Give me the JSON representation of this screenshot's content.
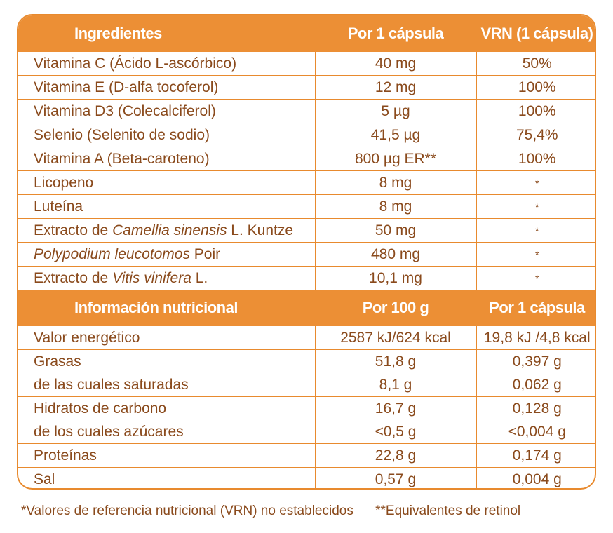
{
  "ingredients_header": {
    "col1": "Ingredientes",
    "col2": "Por 1 cápsula",
    "col3": "VRN (1 cápsula)"
  },
  "ingredients": [
    {
      "pre": "Vitamina C (Ácido L-ascórbico)",
      "italic": "",
      "post": "",
      "amount": "40 mg",
      "vrn": "50%"
    },
    {
      "pre": "Vitamina E (D-alfa tocoferol)",
      "italic": "",
      "post": "",
      "amount": "12 mg",
      "vrn": "100%"
    },
    {
      "pre": "Vitamina D3 (Colecalciferol)",
      "italic": "",
      "post": "",
      "amount": "5 µg",
      "vrn": "100%"
    },
    {
      "pre": "Selenio (Selenito de sodio)",
      "italic": "",
      "post": "",
      "amount": "41,5 µg",
      "vrn": "75,4%"
    },
    {
      "pre": "Vitamina A (Beta-caroteno)",
      "italic": "",
      "post": "",
      "amount": "800 µg ER**",
      "vrn": "100%"
    },
    {
      "pre": "Licopeno",
      "italic": "",
      "post": "",
      "amount": "8 mg",
      "vrn": "*"
    },
    {
      "pre": "Luteína",
      "italic": "",
      "post": "",
      "amount": "8 mg",
      "vrn": "*"
    },
    {
      "pre": "Extracto de ",
      "italic": "Camellia sinensis",
      "post": " L. Kuntze",
      "amount": "50 mg",
      "vrn": "*"
    },
    {
      "pre": "",
      "italic": "Polypodium leucotomos",
      "post": " Poir",
      "amount": "480 mg",
      "vrn": "*"
    },
    {
      "pre": "Extracto de ",
      "italic": "Vitis vinifera",
      "post": " L.",
      "amount": "10,1 mg",
      "vrn": "*"
    }
  ],
  "nutrition_header": {
    "col1": "Información nutricional",
    "col2": "Por 100 g",
    "col3": "Por 1 cápsula"
  },
  "nutrition": [
    {
      "name": "Valor energético",
      "per100": "2587 kJ/624 kcal",
      "percap": "19,8 kJ /4,8 kcal"
    },
    {
      "name": "Grasas",
      "per100": "51,8 g",
      "percap": "0,397 g"
    },
    {
      "name": "de las cuales saturadas",
      "per100": "8,1 g",
      "percap": "0,062 g"
    },
    {
      "name": "Hidratos de carbono",
      "per100": "16,7 g",
      "percap": "0,128 g"
    },
    {
      "name": "de los cuales azúcares",
      "per100": "<0,5 g",
      "percap": "<0,004 g"
    },
    {
      "name": "Proteínas",
      "per100": "22,8 g",
      "percap": "0,174 g"
    },
    {
      "name": "Sal",
      "per100": "0,57 g",
      "percap": "0,004 g"
    }
  ],
  "footnotes": {
    "vrn_note": "*Valores de referencia nutricional (VRN) no establecidos",
    "retinol_note": "**Equivalentes de retinol"
  },
  "colors": {
    "accent": "#ec8f35",
    "text": "#8a4a1c"
  }
}
